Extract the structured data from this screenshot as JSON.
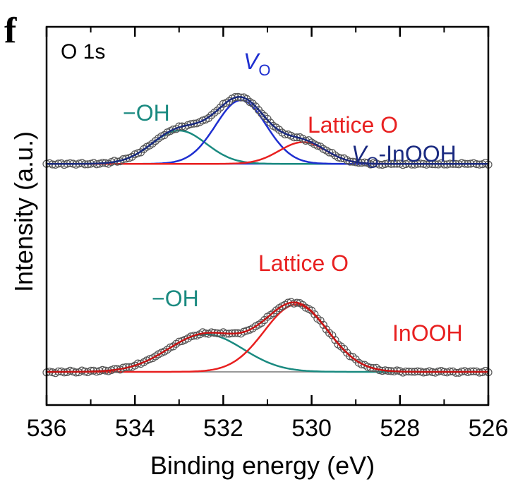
{
  "panel_label": "f",
  "chart_data": {
    "type": "line",
    "title": "O 1s",
    "xlabel": "Binding energy (eV)",
    "ylabel": "Intensity (a.u.)",
    "xlim": [
      536,
      526
    ],
    "x_reversed": true,
    "x_ticks": [
      536,
      534,
      532,
      530,
      528,
      526
    ],
    "x_tick_labels": [
      "536",
      "534",
      "532",
      "530",
      "528",
      "526"
    ],
    "y_ticks": "none",
    "colors": {
      "data": "#555555",
      "envelope_top": "#1a2a80",
      "envelope_bottom": "#c81414",
      "oh": "#1a8a80",
      "vo": "#1f2fd0",
      "lattice": "#e82020",
      "baseline_top": "#1f2fd0",
      "baseline_bottom": "#999999"
    },
    "panels": [
      {
        "sample": "Vo-InOOH",
        "sample_label": {
          "main": "V",
          "sub": "O",
          "rest": "-InOOH"
        },
        "baseline": 0.16,
        "noise": 0.004,
        "components": [
          {
            "name": "-OH",
            "label": "−OH",
            "center": 533.0,
            "fwhm": 1.45,
            "height": 0.23,
            "color": "#1a8a80"
          },
          {
            "name": "Vo",
            "label_main": "V",
            "label_sub": "O",
            "center": 531.6,
            "fwhm": 1.35,
            "height": 0.44,
            "color": "#1f2fd0"
          },
          {
            "name": "Lattice O",
            "label": "Lattice O",
            "center": 530.2,
            "fwhm": 1.25,
            "height": 0.15,
            "color": "#e82020"
          }
        ]
      },
      {
        "sample": "InOOH",
        "sample_label": {
          "main": "InOOH"
        },
        "baseline": 0.0,
        "noise": 0.004,
        "components": [
          {
            "name": "-OH",
            "label": "−OH",
            "center": 532.4,
            "fwhm": 2.0,
            "height": 0.235,
            "color": "#1a8a80"
          },
          {
            "name": "Lattice O",
            "label": "Lattice O",
            "center": 530.35,
            "fwhm": 1.7,
            "height": 0.42,
            "color": "#e82020"
          }
        ]
      }
    ]
  }
}
